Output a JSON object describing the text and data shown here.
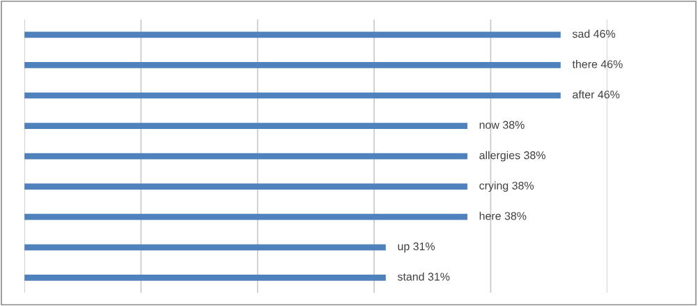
{
  "chart_data": {
    "type": "bar",
    "orientation": "horizontal",
    "categories": [
      null,
      null,
      null,
      null,
      null,
      null,
      null,
      null,
      null
    ],
    "values": [
      46,
      46,
      46,
      38,
      38,
      38,
      38,
      31,
      31
    ],
    "value_labels": [
      "sad 46%",
      "there 46%",
      "after 46%",
      "now 38%",
      "allergies 38%",
      "crying 38%",
      "here 38%",
      "up 31%",
      "stand 31%"
    ],
    "color": "#4f81bd",
    "xlim": [
      0,
      50
    ],
    "xticks": [
      {
        "value": 0,
        "label": null
      },
      {
        "value": 10,
        "label": null
      },
      {
        "value": 20,
        "label": null
      },
      {
        "value": 30,
        "label": null
      },
      {
        "value": 40,
        "label": null
      },
      {
        "value": 50,
        "label": null
      }
    ],
    "grid": "x",
    "legend": false
  }
}
